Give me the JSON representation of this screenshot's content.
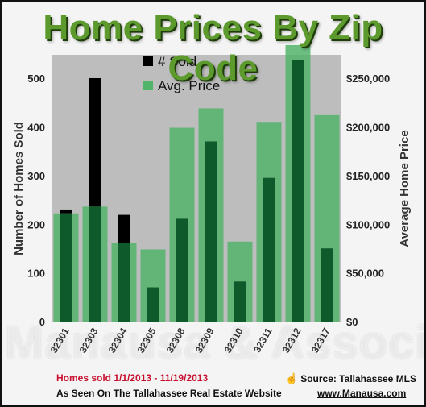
{
  "title": "Home Prices By Zip Code",
  "footer": {
    "dates": "Homes sold 1/1/2013 - 11/19/2013",
    "source": "Source: Tallahassee MLS",
    "website": "As Seen On The Tallahassee Real Estate Website",
    "url": "www.Manausa.com"
  },
  "watermark_text": "Manausa & Associates",
  "watermark_icon": "century-21-logo-watermark",
  "colors": {
    "title": "#5c9a2e",
    "sold_bar": "#000000",
    "sold_bar_over_price": "#0f5a2a",
    "price_bar": "#52b36b",
    "plot_bg": "#bdbdbd",
    "footer_dates": "#c8102e"
  },
  "chart_data": {
    "type": "bar",
    "categories": [
      "32301",
      "32303",
      "32304",
      "32305",
      "32308",
      "32309",
      "32310",
      "32311",
      "32312",
      "32317"
    ],
    "series": [
      {
        "name": "# Sold",
        "axis": "left",
        "values": [
          232,
          502,
          221,
          72,
          213,
          372,
          84,
          297,
          540,
          152
        ]
      },
      {
        "name": "Avg. Price",
        "axis": "right",
        "values": [
          112000,
          119000,
          82000,
          75000,
          200000,
          220000,
          83000,
          206000,
          285000,
          213000
        ]
      }
    ],
    "ylabel_left": "Number of Homes Sold",
    "ylabel_right": "Average Home Price",
    "ylim_left": [
      0,
      550
    ],
    "yticks_left": [
      0,
      100,
      200,
      300,
      400,
      500
    ],
    "ylim_right": [
      0,
      275000
    ],
    "yticks_right": [
      "$0",
      "$50,000",
      "$100,000",
      "$150,000",
      "$200,000",
      "$250,000"
    ],
    "yticks_right_values": [
      0,
      50000,
      100000,
      150000,
      200000,
      250000
    ],
    "legend_position": "top-center",
    "grid": false
  }
}
